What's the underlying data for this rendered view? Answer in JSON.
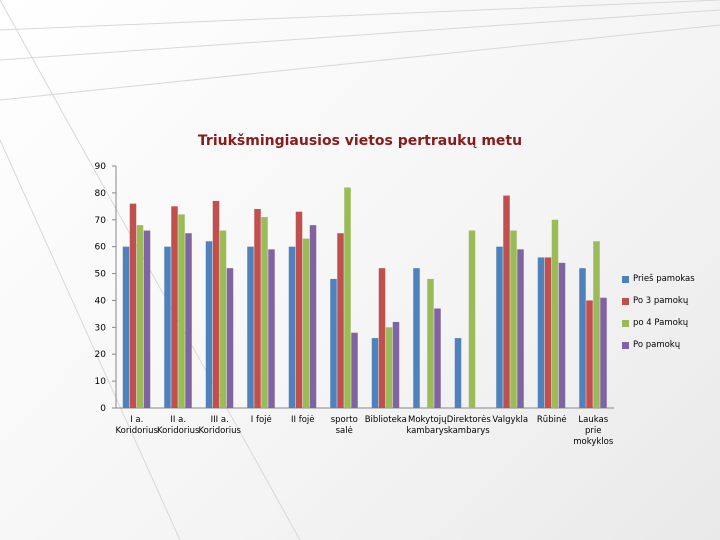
{
  "chart_data": {
    "type": "bar",
    "title": "Triukšmingiausios vietos pertraukų metu",
    "xlabel": "",
    "ylabel": "",
    "ylim": [
      0,
      90
    ],
    "yticks": [
      "0",
      "10",
      "20",
      "30",
      "40",
      "50",
      "60",
      "70",
      "80",
      "90"
    ],
    "grid": false,
    "legend_position": "right",
    "categories": [
      [
        "I a.",
        "Koridorius"
      ],
      [
        "II a.",
        "Koridorius"
      ],
      [
        "III a.",
        "Koridorius"
      ],
      [
        "I fojė"
      ],
      [
        "II fojė"
      ],
      [
        "sporto",
        "salė"
      ],
      [
        "Biblioteka"
      ],
      [
        "Mokytojų",
        "kambarys"
      ],
      [
        "Direktorės",
        "kambarys"
      ],
      [
        "Valgykla"
      ],
      [
        "Rūbinė"
      ],
      [
        "Laukas",
        "prie",
        "mokyklos"
      ]
    ],
    "series": [
      {
        "name": "Prieš pamokas",
        "color": "#4f81bd",
        "values": [
          60,
          60,
          62,
          60,
          60,
          48,
          26,
          52,
          26,
          60,
          56,
          52
        ]
      },
      {
        "name": "Po 3 pamokų",
        "color": "#c0504d",
        "values": [
          76,
          75,
          77,
          74,
          73,
          65,
          52,
          0,
          0,
          79,
          56,
          40
        ]
      },
      {
        "name": "po 4 Pamokų",
        "color": "#9bbb59",
        "values": [
          68,
          72,
          66,
          71,
          63,
          82,
          30,
          48,
          66,
          66,
          70,
          62
        ]
      },
      {
        "name": "Po pamokų",
        "color": "#8064a2",
        "values": [
          66,
          65,
          52,
          59,
          68,
          28,
          32,
          37,
          0,
          59,
          54,
          41
        ]
      }
    ]
  }
}
